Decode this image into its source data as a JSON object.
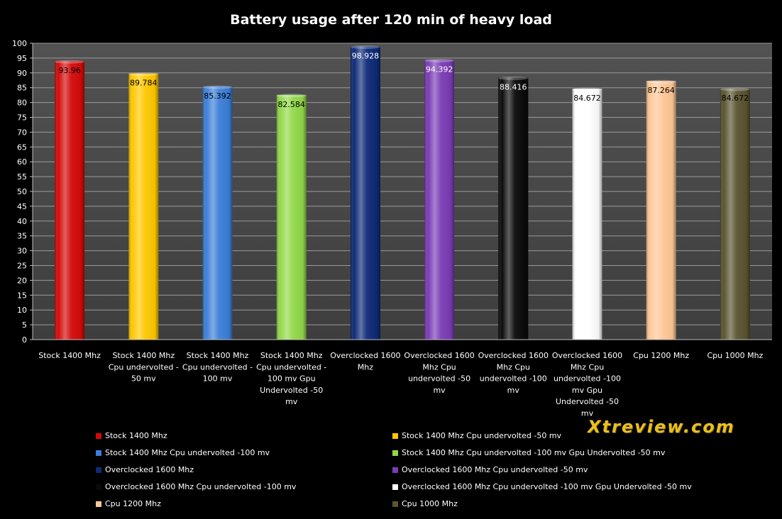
{
  "chart_data": {
    "type": "bar",
    "title": "Battery usage after 120 min of heavy load",
    "xlabel": "",
    "ylabel": "",
    "ylim": [
      0,
      100
    ],
    "ytick_step": 5,
    "grid": true,
    "legend_position": "bottom",
    "categories": [
      "Stock 1400 Mhz",
      "Stock 1400 Mhz Cpu undervolted - 50 mv",
      "Stock 1400 Mhz Cpu undervolted - 100 mv",
      "Stock 1400 Mhz Cpu undervolted - 100 mv Gpu Undervolted -50 mv",
      "Overclocked 1600 Mhz",
      "Overclocked 1600 Mhz Cpu undervolted -50 mv",
      "Overclocked 1600 Mhz Cpu undervolted -100 mv",
      "Overclocked 1600 Mhz Cpu undervolted -100 mv Gpu Undervolted -50 mv",
      "Cpu 1200 Mhz",
      "Cpu 1000 Mhz"
    ],
    "category_label_lines": [
      [
        "Stock 1400 Mhz"
      ],
      [
        "Stock 1400 Mhz",
        "Cpu undervolted -",
        "50 mv"
      ],
      [
        "Stock 1400 Mhz",
        "Cpu undervolted -",
        "100 mv"
      ],
      [
        "Stock 1400 Mhz",
        "Cpu undervolted -",
        "100 mv Gpu",
        "Undervolted -50",
        "mv"
      ],
      [
        "Overclocked 1600",
        "Mhz"
      ],
      [
        "Overclocked 1600",
        "Mhz Cpu",
        "undervolted -50",
        "mv"
      ],
      [
        "Overclocked 1600",
        "Mhz Cpu",
        "undervolted -100",
        "mv"
      ],
      [
        "Overclocked 1600",
        "Mhz Cpu",
        "undervolted -100",
        "mv Gpu",
        "Undervolted -50",
        "mv"
      ],
      [
        "Cpu 1200 Mhz"
      ],
      [
        "Cpu 1000 Mhz"
      ]
    ],
    "values": [
      93.96,
      89.784,
      85.392,
      82.584,
      98.928,
      94.392,
      88.416,
      84.672,
      87.264,
      84.672
    ],
    "value_labels": [
      "93.96",
      "89.784",
      "85.392",
      "82.584",
      "98.928",
      "94.392",
      "88.416",
      "84.672",
      "87.264",
      "84.672"
    ],
    "colors": [
      "#d40a0a",
      "#ffc800",
      "#3c7fd8",
      "#92d94a",
      "#0e2a78",
      "#7a3cb4",
      "#0a0a0a",
      "#ffffff",
      "#ffc896",
      "#5a5430"
    ],
    "label_colors": [
      "#000000",
      "#000000",
      "#000000",
      "#000000",
      "#ffffff",
      "#ffffff",
      "#ffffff",
      "#000000",
      "#000000",
      "#000000"
    ],
    "legend": [
      "Stock 1400 Mhz",
      "Stock 1400 Mhz  Cpu undervolted -50 mv",
      "Stock 1400 Mhz  Cpu undervolted -100 mv",
      "Stock 1400 Mhz  Cpu undervolted -100 mv Gpu Undervolted -50 mv",
      "Overclocked 1600 Mhz",
      "Overclocked 1600 Mhz Cpu undervolted -50 mv",
      "Overclocked 1600 Mhz Cpu undervolted -100 mv",
      "Overclocked 1600 Mhz Cpu undervolted -100 mv Gpu Undervolted -50 mv",
      "Cpu 1200 Mhz",
      "Cpu 1000 Mhz"
    ]
  },
  "watermark": "Xtreview.com"
}
